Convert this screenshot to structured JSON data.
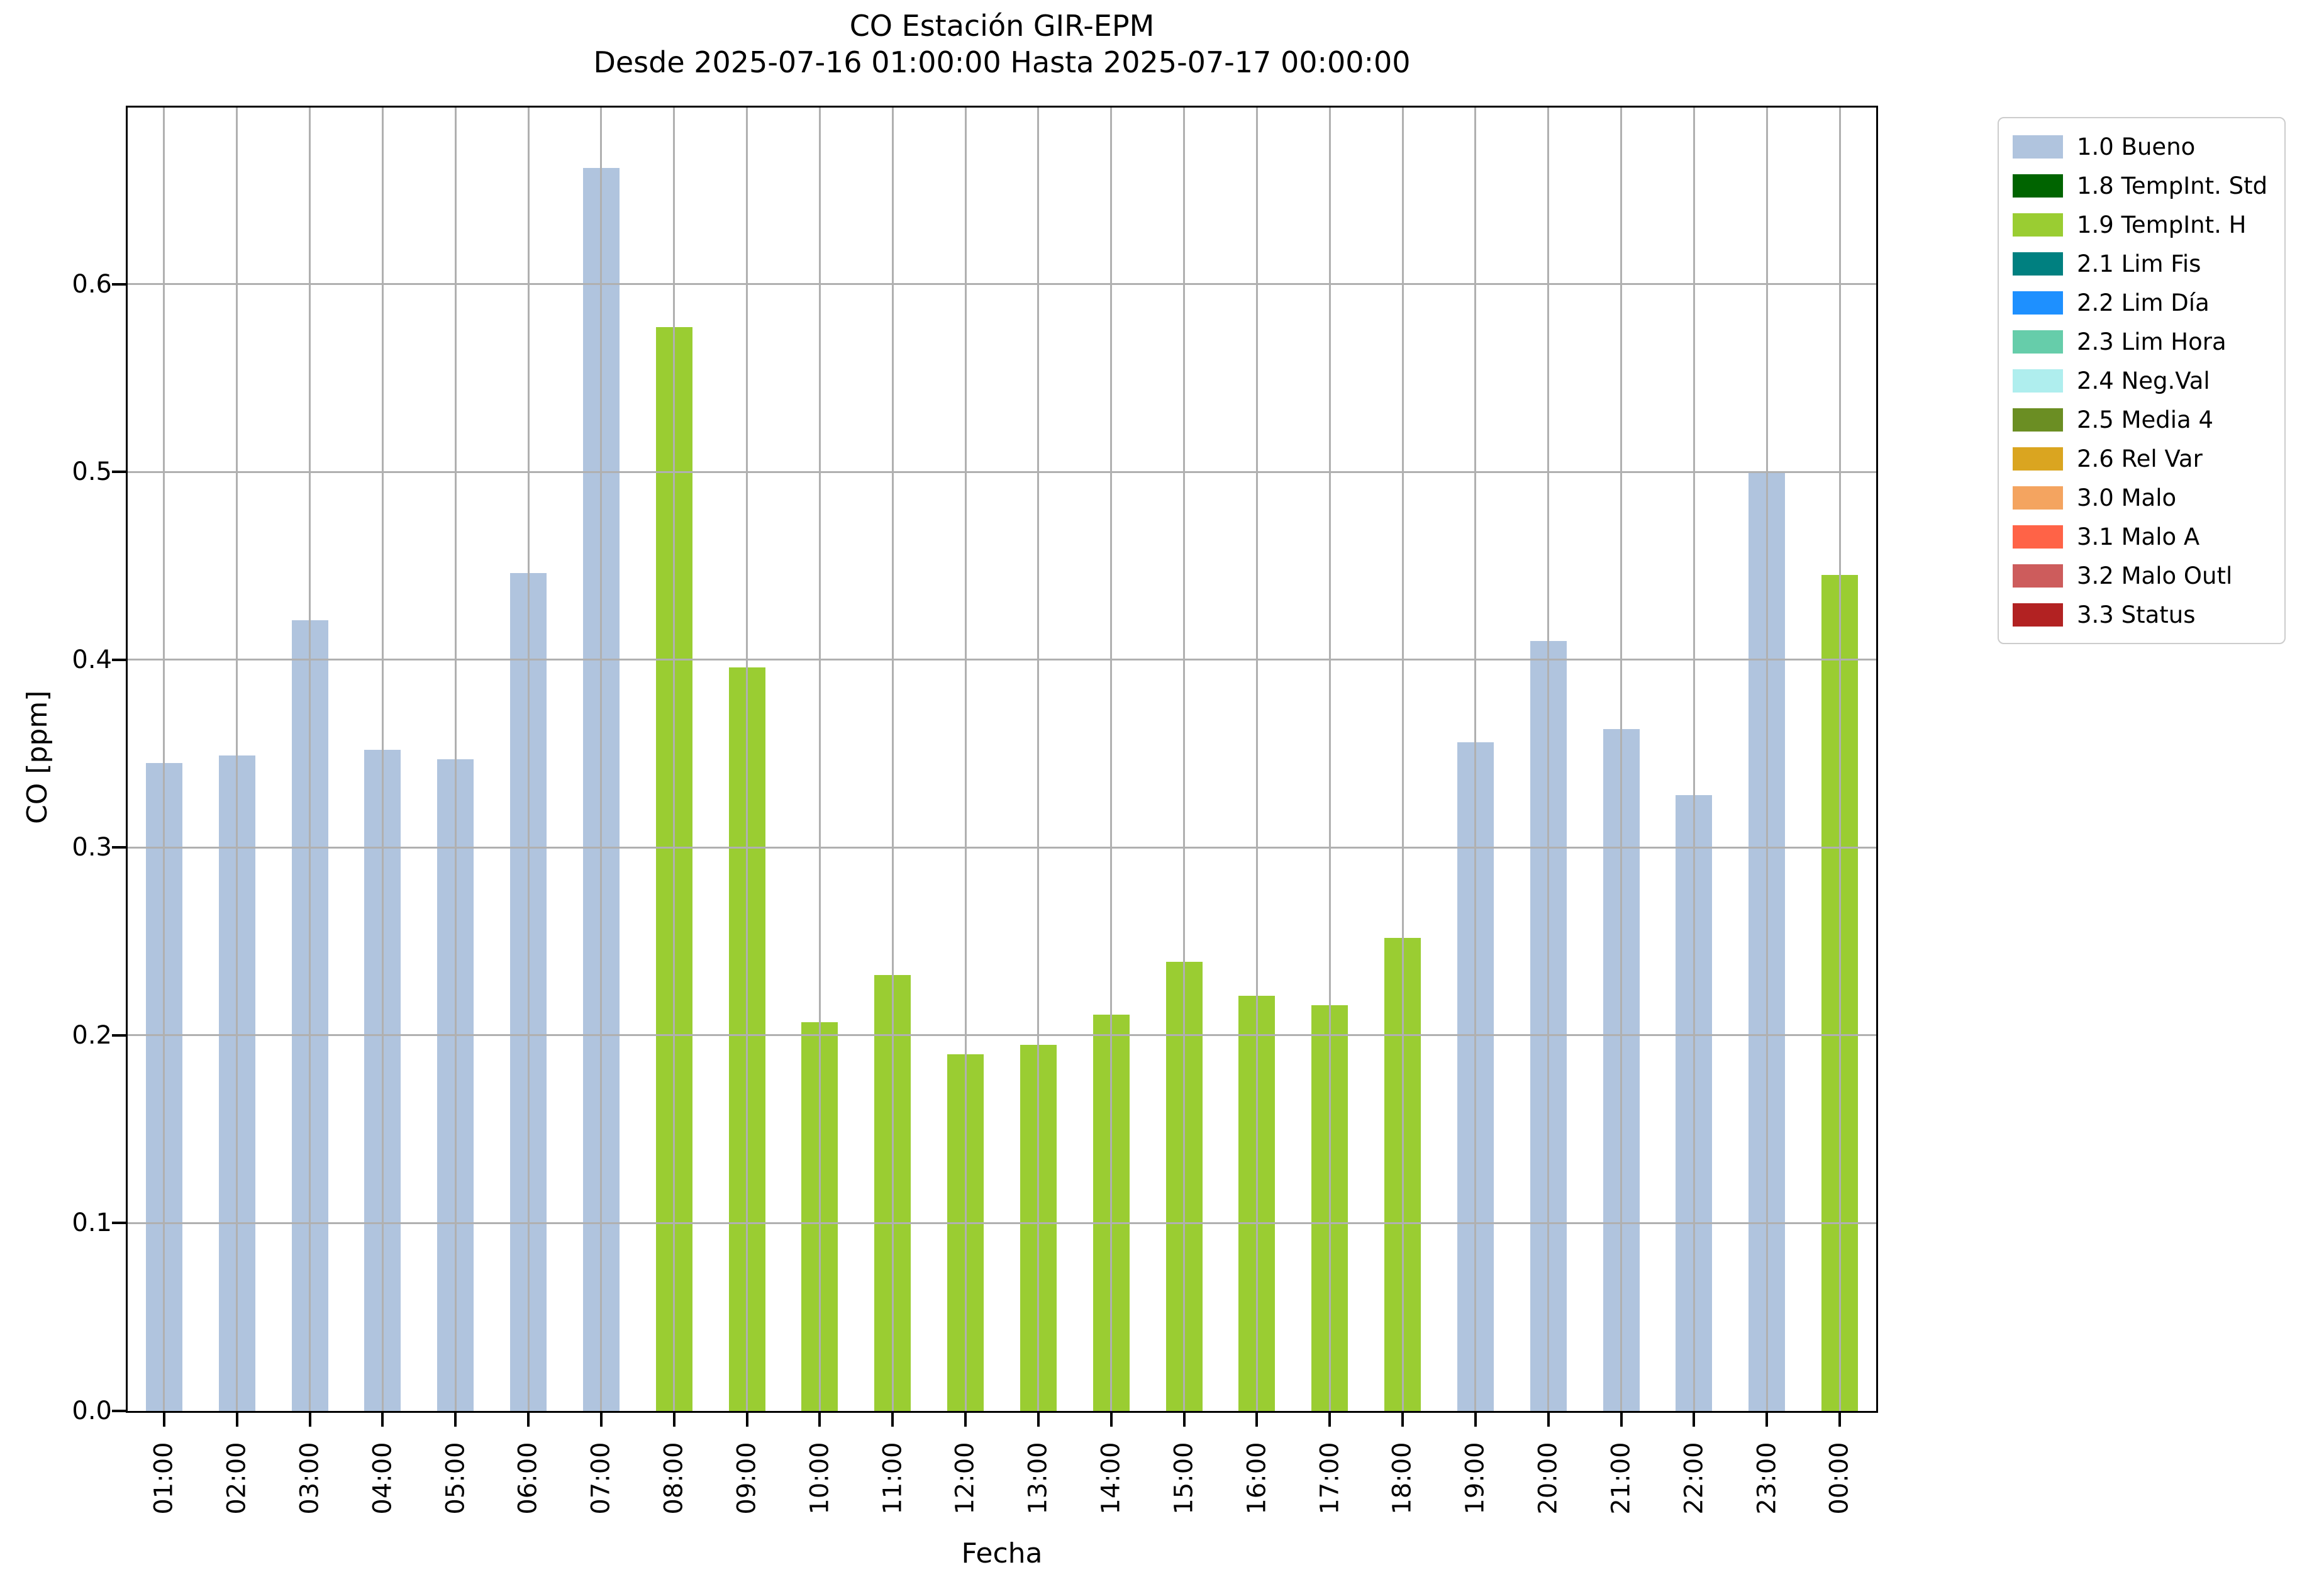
{
  "figure": {
    "title": "CO Estación GIR-EPM",
    "subtitle": "Desde 2025-07-16 01:00:00 Hasta 2025-07-17 00:00:00",
    "xlabel": "Fecha",
    "ylabel": "CO [ppm]"
  },
  "chart_data": {
    "type": "bar",
    "title": "CO Estación GIR-EPM",
    "subtitle": "Desde 2025-07-16 01:00:00 Hasta 2025-07-17 00:00:00",
    "xlabel": "Fecha",
    "ylabel": "CO [ppm]",
    "ylim": [
      0,
      0.694
    ],
    "yticks": [
      0.0,
      0.1,
      0.2,
      0.3,
      0.4,
      0.5,
      0.6
    ],
    "grid": true,
    "legend_position": "outside-right",
    "categories": [
      "01:00",
      "02:00",
      "03:00",
      "04:00",
      "05:00",
      "06:00",
      "07:00",
      "08:00",
      "09:00",
      "10:00",
      "11:00",
      "12:00",
      "13:00",
      "14:00",
      "15:00",
      "16:00",
      "17:00",
      "18:00",
      "19:00",
      "20:00",
      "21:00",
      "22:00",
      "23:00",
      "00:00"
    ],
    "values": [
      0.345,
      0.349,
      0.421,
      0.352,
      0.347,
      0.446,
      0.662,
      0.577,
      0.396,
      0.207,
      0.232,
      0.19,
      0.195,
      0.211,
      0.239,
      0.221,
      0.216,
      0.252,
      0.356,
      0.41,
      0.363,
      0.328,
      0.5,
      0.445
    ],
    "bar_status": [
      "1.0 Bueno",
      "1.0 Bueno",
      "1.0 Bueno",
      "1.0 Bueno",
      "1.0 Bueno",
      "1.0 Bueno",
      "1.0 Bueno",
      "1.9 TempInt. H",
      "1.9 TempInt. H",
      "1.9 TempInt. H",
      "1.9 TempInt. H",
      "1.9 TempInt. H",
      "1.9 TempInt. H",
      "1.9 TempInt. H",
      "1.9 TempInt. H",
      "1.9 TempInt. H",
      "1.9 TempInt. H",
      "1.9 TempInt. H",
      "1.0 Bueno",
      "1.0 Bueno",
      "1.0 Bueno",
      "1.0 Bueno",
      "1.0 Bueno",
      "1.9 TempInt. H"
    ],
    "status_colors": {
      "1.0 Bueno": "#b0c4de",
      "1.9 TempInt. H": "#9acd32"
    },
    "legend": [
      {
        "label": "1.0 Bueno",
        "color": "#b0c4de"
      },
      {
        "label": "1.8 TempInt. Std",
        "color": "#006400"
      },
      {
        "label": "1.9 TempInt. H",
        "color": "#9acd32"
      },
      {
        "label": "2.1 Lim Fis",
        "color": "#008080"
      },
      {
        "label": "2.2 Lim Día",
        "color": "#1e90ff"
      },
      {
        "label": "2.3 Lim Hora",
        "color": "#66cdaa"
      },
      {
        "label": "2.4 Neg.Val",
        "color": "#afeeee"
      },
      {
        "label": "2.5 Media 4",
        "color": "#6b8e23"
      },
      {
        "label": "2.6 Rel Var",
        "color": "#daa520"
      },
      {
        "label": "3.0 Malo",
        "color": "#f4a460"
      },
      {
        "label": "3.1 Malo A",
        "color": "#ff6347"
      },
      {
        "label": "3.2 Malo Outl",
        "color": "#cd5c5c"
      },
      {
        "label": "3.3 Status",
        "color": "#b22222"
      }
    ],
    "colors": {
      "grid": "#b0b0b0",
      "spine": "#000000",
      "background": "#ffffff",
      "text": "#000000"
    }
  }
}
